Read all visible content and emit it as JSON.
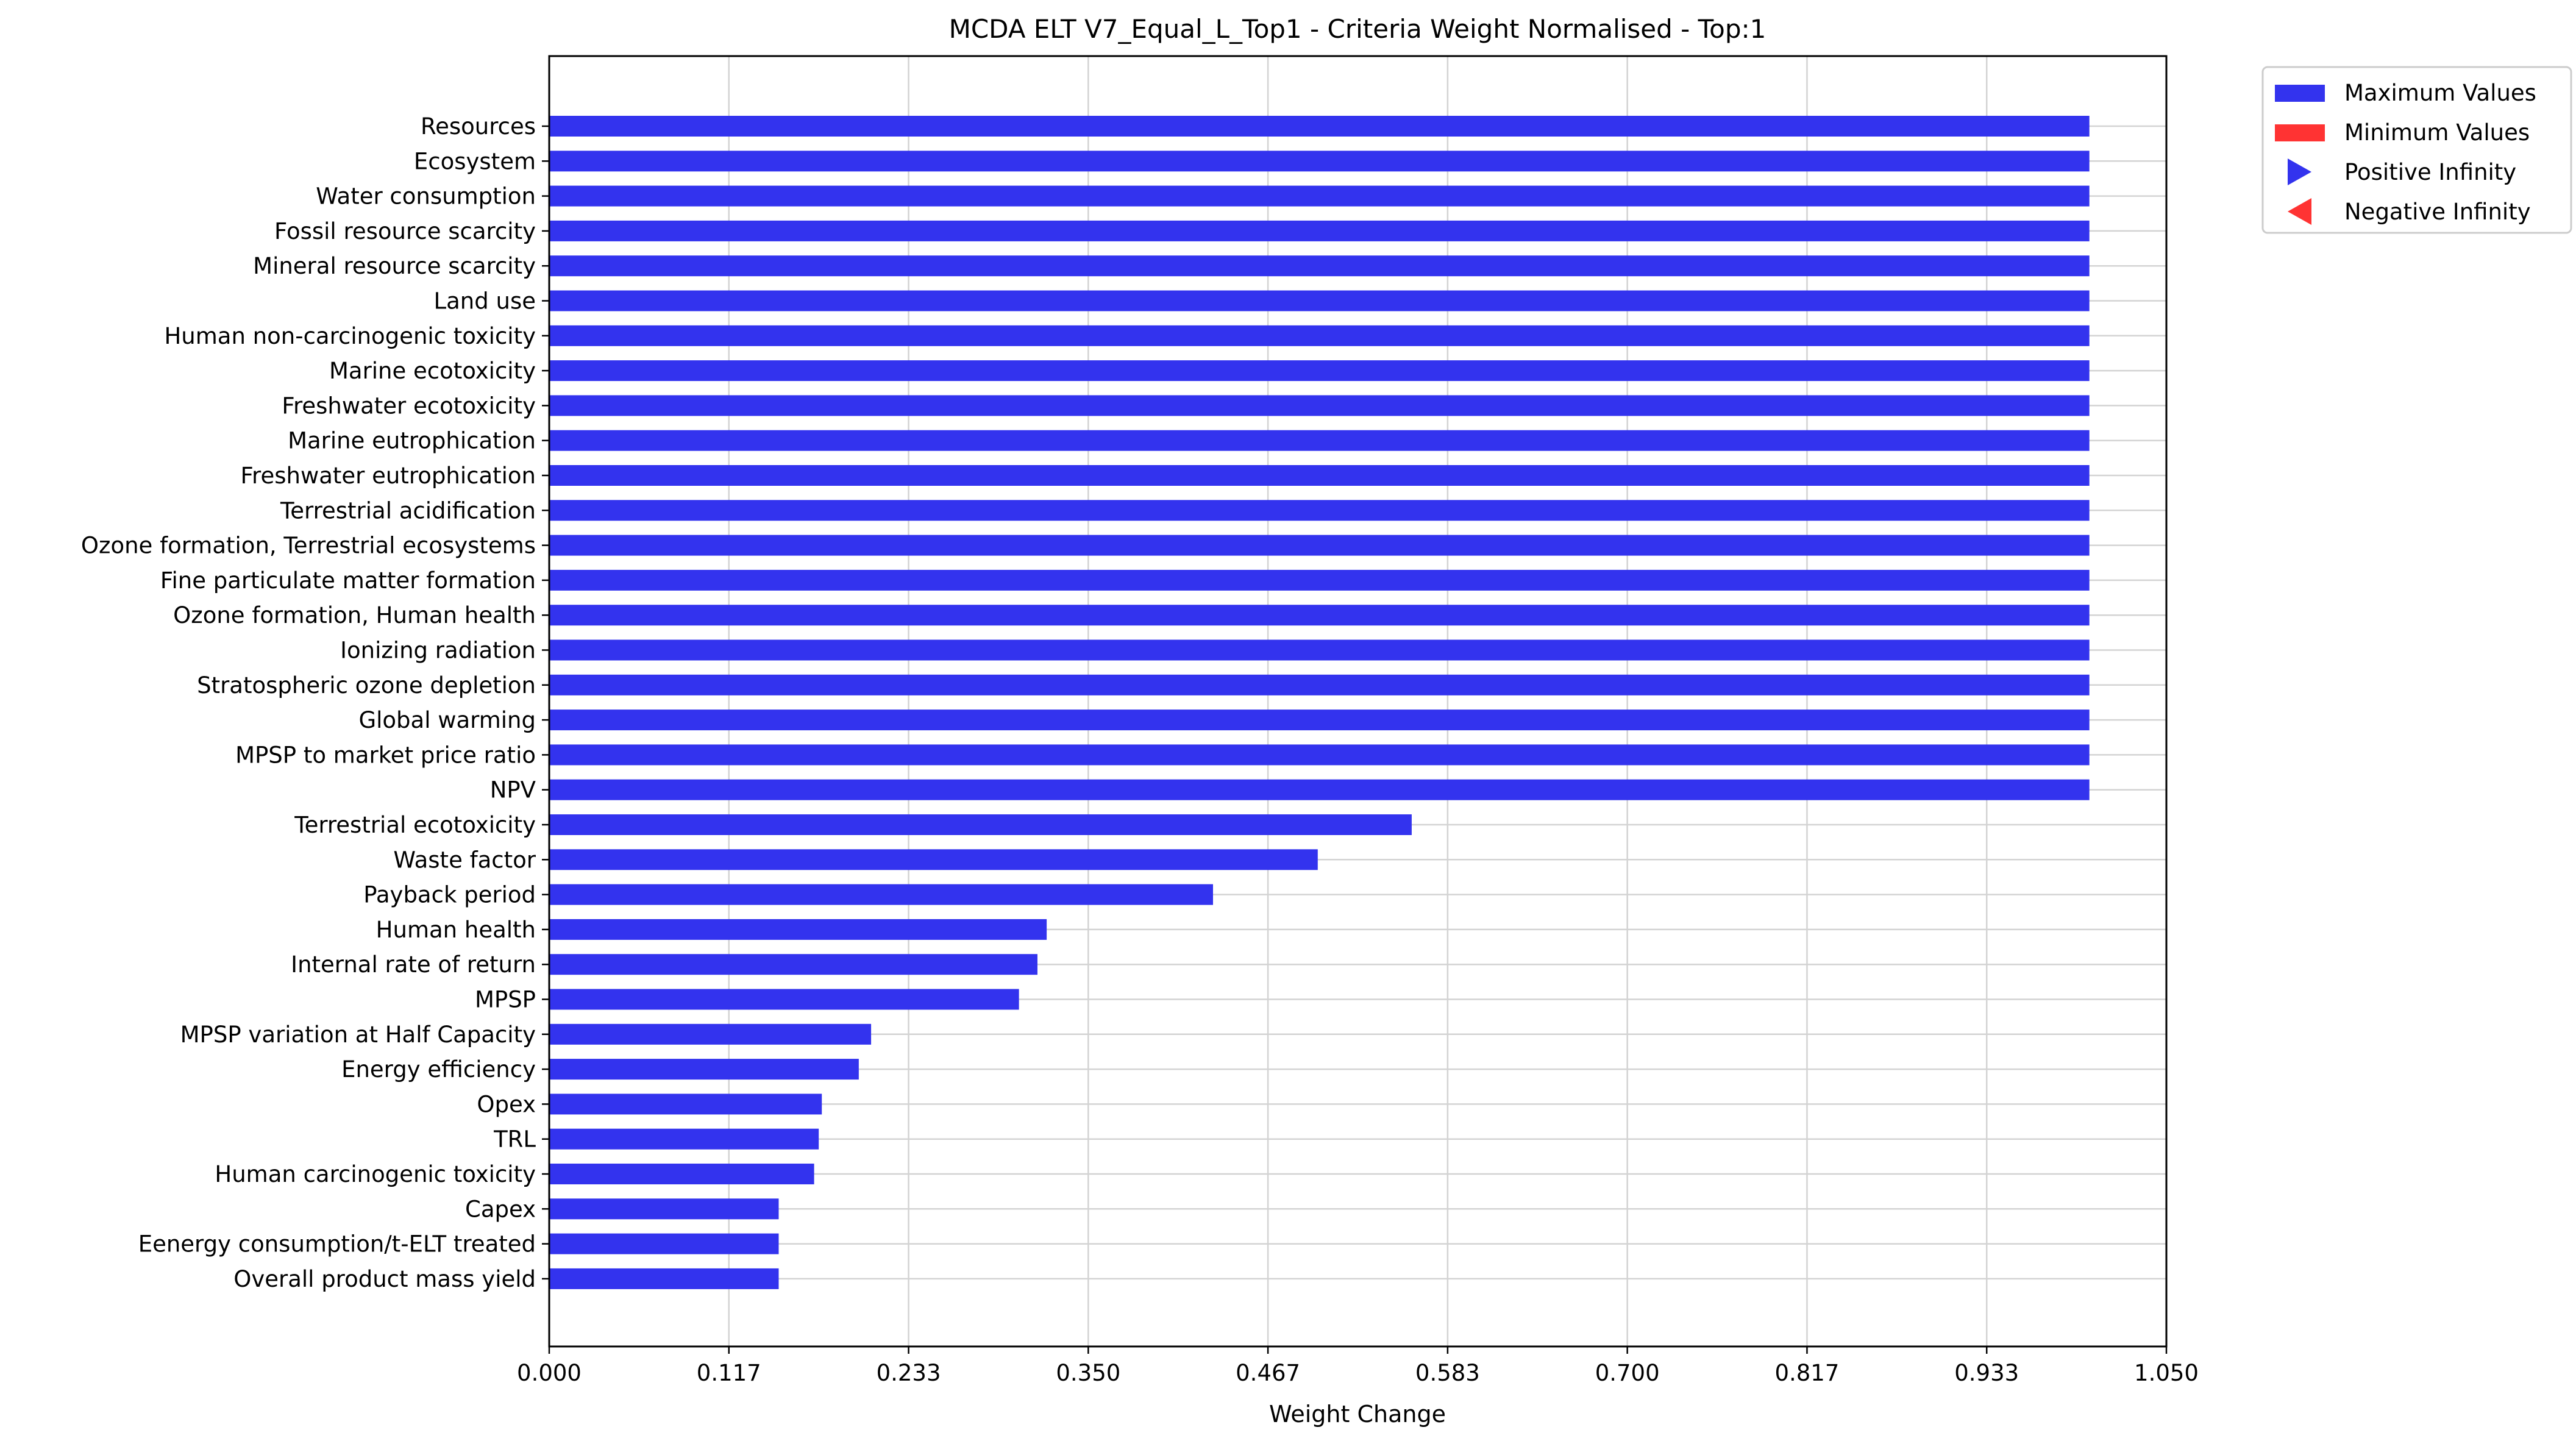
{
  "chart_data": {
    "type": "bar",
    "orientation": "horizontal",
    "title": "MCDA ELT V7_Equal_L_Top1 - Criteria Weight Normalised - Top:1",
    "xlabel": "Weight Change",
    "ylabel": "",
    "xlim": [
      0,
      1.05
    ],
    "xticks": [
      "0.000",
      "0.117",
      "0.233",
      "0.350",
      "0.467",
      "0.583",
      "0.700",
      "0.817",
      "0.933",
      "1.050"
    ],
    "grid": true,
    "legend_position": "outside-top-right",
    "categories": [
      "Resources",
      "Ecosystem",
      "Water consumption",
      "Fossil resource scarcity",
      "Mineral resource scarcity",
      "Land use",
      "Human non-carcinogenic toxicity",
      "Marine ecotoxicity",
      "Freshwater ecotoxicity",
      "Marine eutrophication",
      "Freshwater eutrophication",
      "Terrestrial acidification",
      "Ozone formation, Terrestrial ecosystems",
      "Fine particulate matter formation",
      "Ozone formation, Human health",
      "Ionizing radiation",
      "Stratospheric ozone depletion",
      "Global warming",
      "MPSP to market price ratio",
      "NPV",
      "Terrestrial ecotoxicity",
      "Waste factor",
      "Payback period",
      "Human health",
      "Internal rate of return",
      "MPSP",
      "MPSP variation at Half Capacity",
      "Energy efficiency",
      "Opex",
      "TRL",
      "Human carcinogenic toxicity",
      "Capex",
      "Eenergy consumption/t-ELT treated",
      "Overall product mass yield"
    ],
    "series": [
      {
        "name": "Maximum Values",
        "color": "#3333ee",
        "values": [
          1.0,
          1.0,
          1.0,
          1.0,
          1.0,
          1.0,
          1.0,
          1.0,
          1.0,
          1.0,
          1.0,
          1.0,
          1.0,
          1.0,
          1.0,
          1.0,
          1.0,
          1.0,
          1.0,
          1.0,
          0.56,
          0.499,
          0.431,
          0.323,
          0.317,
          0.305,
          0.209,
          0.201,
          0.177,
          0.175,
          0.172,
          0.149,
          0.149,
          0.149
        ]
      },
      {
        "name": "Minimum Values",
        "color": "#ff3333",
        "values": [
          0,
          0,
          0,
          0,
          0,
          0,
          0,
          0,
          0,
          0,
          0,
          0,
          0,
          0,
          0,
          0,
          0,
          0,
          0,
          0,
          0,
          0,
          0,
          0,
          0,
          0,
          0,
          0,
          0,
          0,
          0,
          0,
          0,
          0
        ]
      }
    ],
    "legend": [
      {
        "label": "Maximum Values",
        "marker": "rect",
        "color": "#3333ee"
      },
      {
        "label": "Minimum Values",
        "marker": "rect",
        "color": "#ff3333"
      },
      {
        "label": "Positive Infinity",
        "marker": "triangle-right",
        "color": "#3333ee"
      },
      {
        "label": "Negative Infinity",
        "marker": "triangle-left",
        "color": "#ff3333"
      }
    ]
  }
}
